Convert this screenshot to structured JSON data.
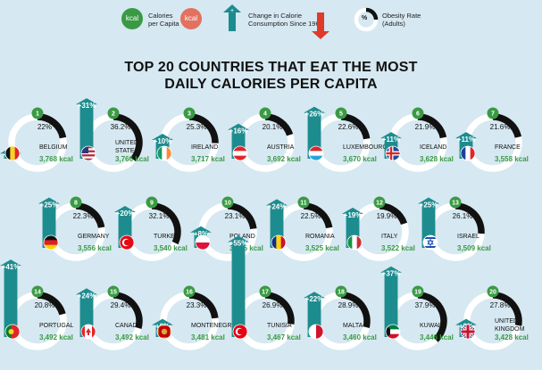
{
  "legend": {
    "kcal_green": "kcal",
    "kcal_red": "kcal",
    "calories_label": "Calories\nper Capita",
    "change_label": "Change in Calorie\nConsumption Since 1961",
    "obesity_pct": "%",
    "obesity_label": "Obesity Rate\n(Adults)"
  },
  "title_line1": "TOP 20 COUNTRIES THAT EAT THE MOST",
  "title_line2": "DAILY CALORIES PER CAPITA",
  "colors": {
    "green": "#3a9a44",
    "teal": "#1d8c8f",
    "red": "#e03a2c",
    "ring": "#ffffff",
    "arc": "#111111",
    "background": "#d6e8f1"
  },
  "chart_data": {
    "type": "table",
    "columns": [
      "rank",
      "country",
      "kcal",
      "change",
      "obesity"
    ],
    "rows": [
      {
        "rank": "1",
        "country": "BELGIUM",
        "kcal": "3,768 kcal",
        "change": "+2%",
        "obesity": "22%"
      },
      {
        "rank": "2",
        "country": "UNITED\nSTATES",
        "kcal": "3,766 kcal",
        "change": "+31%",
        "obesity": "36.2%"
      },
      {
        "rank": "3",
        "country": "IRELAND",
        "kcal": "3,717 kcal",
        "change": "+10%",
        "obesity": "25.3%"
      },
      {
        "rank": "4",
        "country": "AUSTRIA",
        "kcal": "3,692 kcal",
        "change": "+16%",
        "obesity": "20.1%"
      },
      {
        "rank": "5",
        "country": "LUXEMBOURG",
        "kcal": "3,670 kcal",
        "change": "+26%",
        "obesity": "22.6%"
      },
      {
        "rank": "6",
        "country": "ICELAND",
        "kcal": "3,628 kcal",
        "change": "+11%",
        "obesity": "21.9%"
      },
      {
        "rank": "7",
        "country": "FRANCE",
        "kcal": "3,558 kcal",
        "change": "+11%",
        "obesity": "21.6%"
      },
      {
        "rank": "8",
        "country": "GERMANY",
        "kcal": "3,556 kcal",
        "change": "+25%",
        "obesity": "22.3%"
      },
      {
        "rank": "9",
        "country": "TURKEY",
        "kcal": "3,540 kcal",
        "change": "+20%",
        "obesity": "32.1%"
      },
      {
        "rank": "10",
        "country": "POLAND",
        "kcal": "3,525 kcal",
        "change": "+8%",
        "obesity": "23.1%"
      },
      {
        "rank": "11",
        "country": "ROMANIA",
        "kcal": "3,525 kcal",
        "change": "+24%",
        "obesity": "22.5%"
      },
      {
        "rank": "12",
        "country": "ITALY",
        "kcal": "3,522 kcal",
        "change": "+19%",
        "obesity": "19.9%"
      },
      {
        "rank": "13",
        "country": "ISRAEL",
        "kcal": "3,509 kcal",
        "change": "+25%",
        "obesity": "26.1%"
      },
      {
        "rank": "14",
        "country": "PORTUGAL",
        "kcal": "3,492 kcal",
        "change": "+41%",
        "obesity": "20.8%"
      },
      {
        "rank": "15",
        "country": "CANADA",
        "kcal": "3,492 kcal",
        "change": "+24%",
        "obesity": "29.4%"
      },
      {
        "rank": "16",
        "country": "MONTENEGRO",
        "kcal": "3,481 kcal",
        "change": "+6%",
        "obesity": "23.3%"
      },
      {
        "rank": "17",
        "country": "TUNISIA",
        "kcal": "3,467 kcal",
        "change": "+55%",
        "obesity": "26.9%"
      },
      {
        "rank": "18",
        "country": "MALTA",
        "kcal": "3,460 kcal",
        "change": "+22%",
        "obesity": "28.9%"
      },
      {
        "rank": "19",
        "country": "KUWAIT",
        "kcal": "3,446 kcal",
        "change": "+37%",
        "obesity": "37.9%"
      },
      {
        "rank": "20",
        "country": "UNITED\nKINGDOM",
        "kcal": "3,428 kcal",
        "change": "+6%",
        "obesity": "27.8%"
      }
    ]
  },
  "flags": [
    {
      "type": "v",
      "c": [
        "#111111",
        "#f5d32a",
        "#e0262b"
      ]
    },
    {
      "type": "us",
      "c": [
        "#b3273b",
        "#ffffff",
        "#2a3a7a"
      ]
    },
    {
      "type": "v",
      "c": [
        "#169b62",
        "#ffffff",
        "#ff883e"
      ]
    },
    {
      "type": "h",
      "c": [
        "#e0262b",
        "#ffffff",
        "#e0262b"
      ]
    },
    {
      "type": "h",
      "c": [
        "#e0262b",
        "#ffffff",
        "#2aa3dc"
      ]
    },
    {
      "type": "nordic",
      "c": [
        "#1a4d9e",
        "#ffffff",
        "#d72828"
      ]
    },
    {
      "type": "v",
      "c": [
        "#1e3f9a",
        "#ffffff",
        "#e0262b"
      ]
    },
    {
      "type": "h",
      "c": [
        "#111111",
        "#dd1f26",
        "#ffce00"
      ]
    },
    {
      "type": "crescent",
      "c": [
        "#e30a17",
        "#ffffff"
      ]
    },
    {
      "type": "h2",
      "c": [
        "#ffffff",
        "#dc143c"
      ]
    },
    {
      "type": "v",
      "c": [
        "#0f2f8a",
        "#fcd116",
        "#ce1126"
      ]
    },
    {
      "type": "v",
      "c": [
        "#169246",
        "#ffffff",
        "#ce2b37"
      ]
    },
    {
      "type": "israel",
      "c": [
        "#ffffff",
        "#1f4fb4"
      ]
    },
    {
      "type": "portugal",
      "c": [
        "#0b7a2a",
        "#e0262b",
        "#f5d32a"
      ]
    },
    {
      "type": "canada",
      "c": [
        "#e0262b",
        "#ffffff"
      ]
    },
    {
      "type": "montenegro",
      "c": [
        "#c40308",
        "#d3ae3b"
      ]
    },
    {
      "type": "crescent",
      "c": [
        "#e70013",
        "#ffffff"
      ]
    },
    {
      "type": "vmalta",
      "c": [
        "#ffffff",
        "#cf142b"
      ]
    },
    {
      "type": "kuwait",
      "c": [
        "#007a3d",
        "#ffffff",
        "#ce1126",
        "#111111"
      ]
    },
    {
      "type": "uk",
      "c": [
        "#012169",
        "#ffffff",
        "#c8102e"
      ]
    }
  ]
}
